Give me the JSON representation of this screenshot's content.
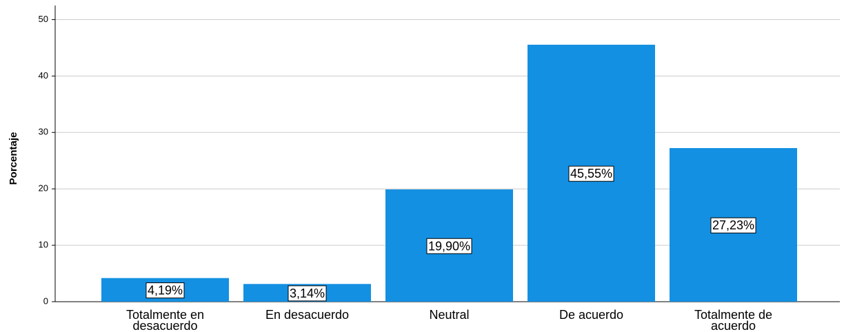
{
  "chart_data": {
    "type": "bar",
    "ylabel": "Porcentaje",
    "categories": [
      [
        "Totalmente en",
        "desacuerdo"
      ],
      [
        "En desacuerdo"
      ],
      [
        "Neutral"
      ],
      [
        "De acuerdo"
      ],
      [
        "Totalmente de",
        "acuerdo"
      ]
    ],
    "values": [
      4.19,
      3.14,
      19.9,
      45.55,
      27.23
    ],
    "value_labels": [
      "4,19%",
      "3,14%",
      "19,90%",
      "45,55%",
      "27,23%"
    ],
    "color": "#1490e2",
    "ylim": [
      0,
      52.5
    ],
    "yticks": [
      0,
      10,
      20,
      30,
      40,
      50
    ],
    "grid": true
  }
}
